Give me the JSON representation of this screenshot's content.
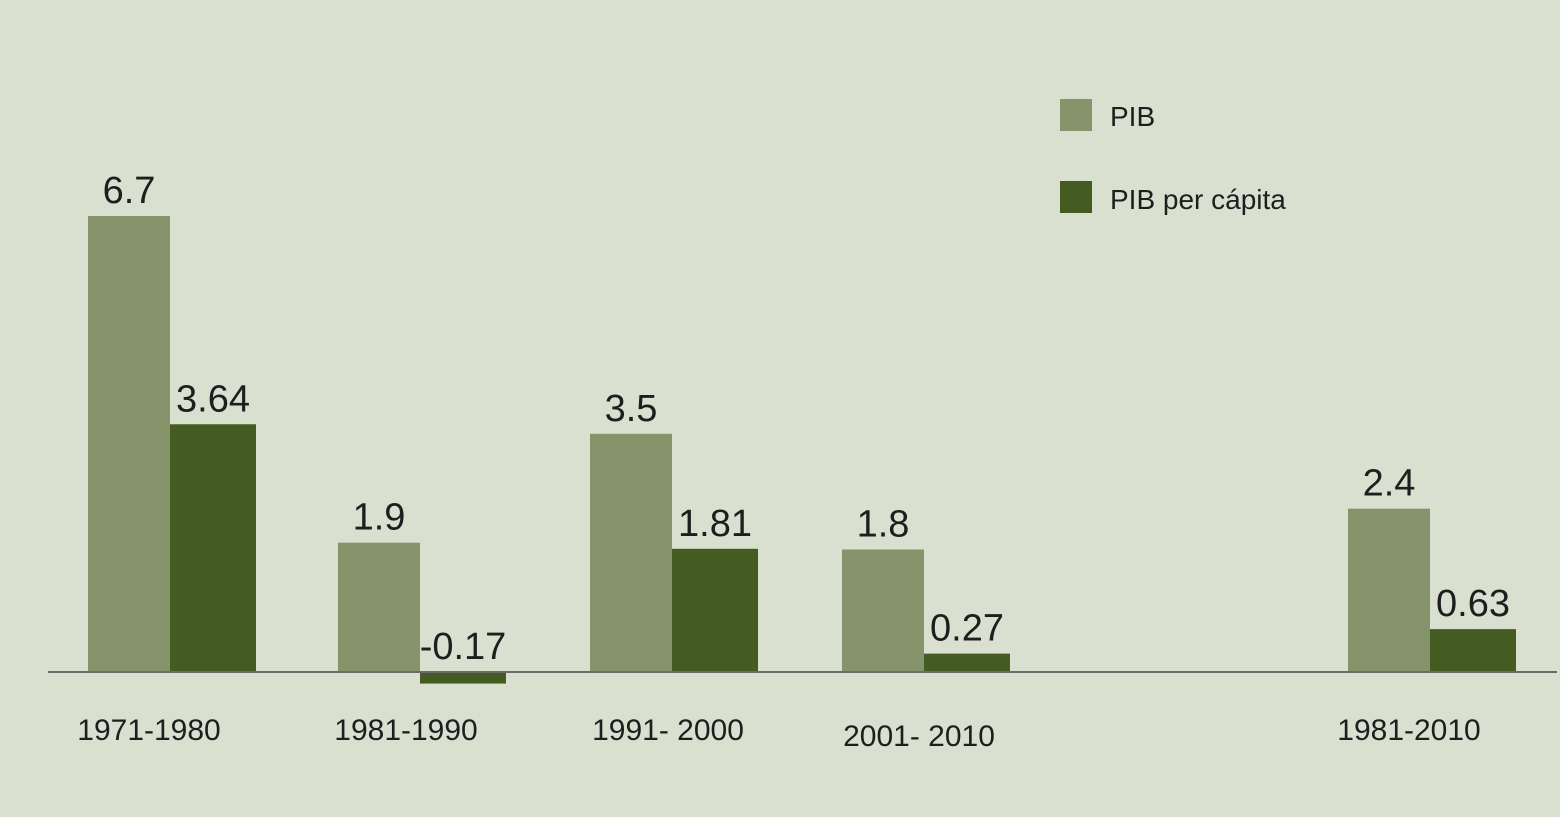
{
  "chart_data": {
    "type": "bar",
    "categories": [
      "1971-1980",
      "1981-1990",
      "1991- 2000",
      "2001- 2010",
      "1981-2010"
    ],
    "series": [
      {
        "name": "PIB",
        "values": [
          6.7,
          1.9,
          3.5,
          1.8,
          2.4
        ],
        "labels": [
          "6.7",
          "1.9",
          "3.5",
          "1.8",
          "2.4"
        ],
        "color": "#85946a"
      },
      {
        "name": "PIB per cápita",
        "values": [
          3.64,
          -0.17,
          1.81,
          0.27,
          0.63
        ],
        "labels": [
          "3.64",
          "-0.17",
          "1.81",
          "0.27",
          "0.63"
        ],
        "color": "#445b22"
      }
    ],
    "ylim": [
      -0.3,
      7.0
    ],
    "grid": false,
    "legend_position": "top-right",
    "colors": {
      "background": "#d9e0d0",
      "axis": "#6b6b6b",
      "text": "#1e1e1e"
    }
  }
}
